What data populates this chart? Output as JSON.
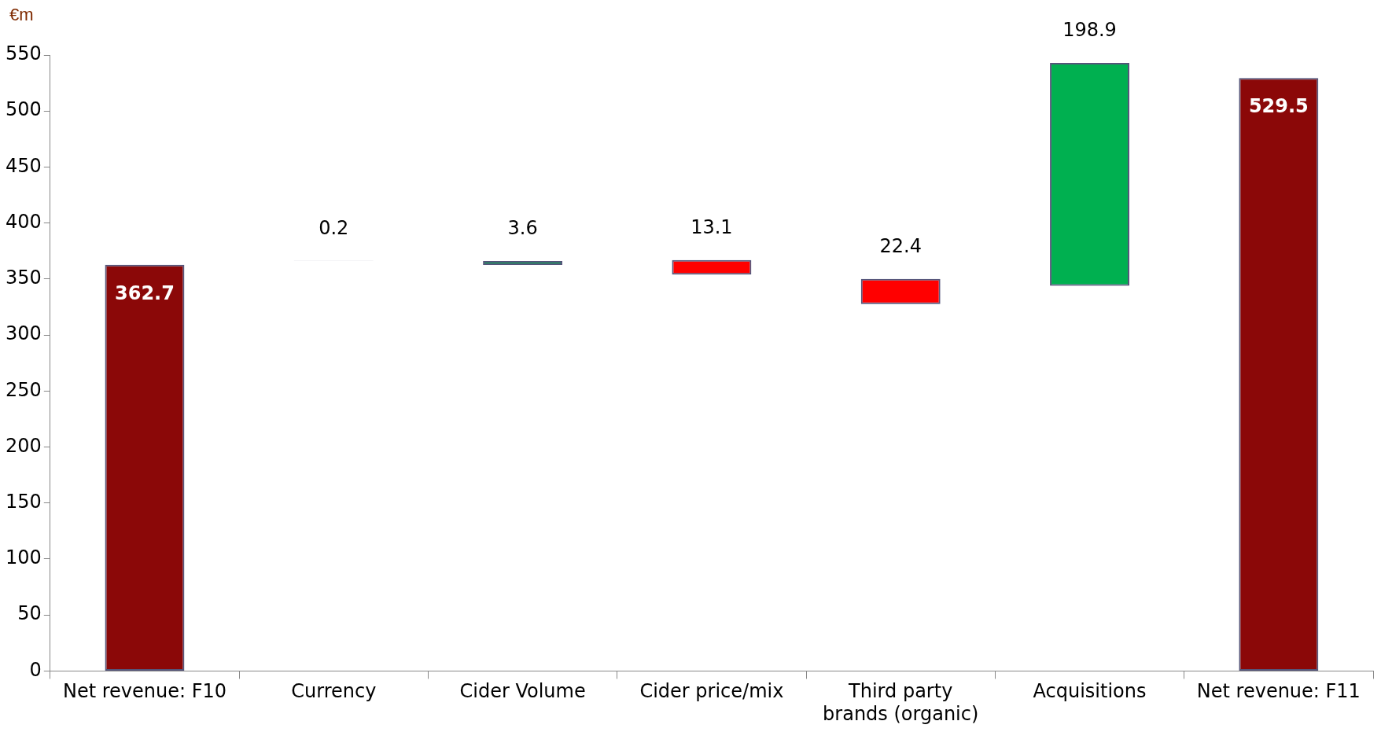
{
  "chart_data": {
    "type": "bar",
    "ylabel": "€m",
    "categories": [
      "Net revenue: F10",
      "Currency",
      "Cider Volume",
      "Cider price/mix",
      "Third party brands (organic)",
      "Acquisitions",
      "Net revenue: F11"
    ],
    "values": [
      362.7,
      0.2,
      3.6,
      -13.1,
      -22.4,
      198.9,
      529.5
    ],
    "base": [
      0,
      366,
      362.5,
      367,
      350,
      344,
      0
    ],
    "colors": [
      "#8b0808",
      "#55557a",
      "#00b050",
      "#ff0000",
      "#ff0000",
      "#00b050",
      "#8b0808"
    ],
    "value_labels": [
      "362.7",
      "0.2",
      "3.6",
      "13.1",
      "22.4",
      "198.9",
      "529.5"
    ],
    "ylim": [
      0,
      550
    ],
    "yticks": [
      0,
      50,
      100,
      150,
      200,
      250,
      300,
      350,
      400,
      450,
      500,
      550
    ],
    "grid": false,
    "legend": false
  }
}
